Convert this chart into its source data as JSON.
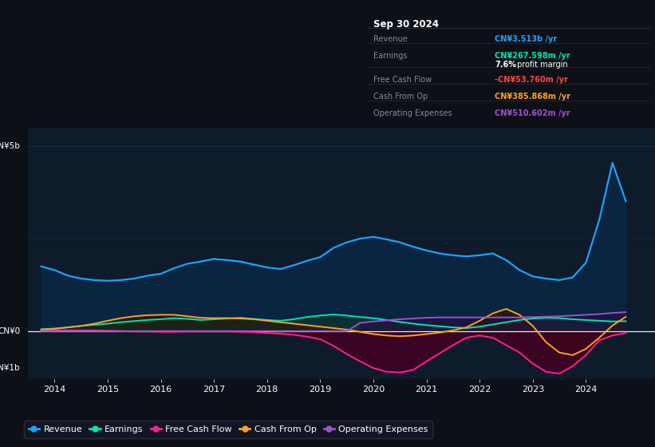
{
  "bg_color": "#0d1117",
  "chart_bg": "#0d1b2a",
  "ylim": [
    -1.3,
    5.5
  ],
  "xlim_start": 2013.5,
  "xlim_end": 2025.3,
  "colors": {
    "revenue": "#1aa3ff",
    "earnings": "#00e5b0",
    "free_cash_flow": "#ff2090",
    "cash_from_op": "#ffa020",
    "operating_expenses": "#a050d0"
  },
  "xticks": [
    2014,
    2015,
    2016,
    2017,
    2018,
    2019,
    2020,
    2021,
    2022,
    2023,
    2024
  ],
  "legend_labels": [
    "Revenue",
    "Earnings",
    "Free Cash Flow",
    "Cash From Op",
    "Operating Expenses"
  ],
  "info_title": "Sep 30 2024",
  "info_rows": [
    {
      "label": "Revenue",
      "value": "CN¥3.513b /yr",
      "vcolor": "#1aa3ff",
      "extra": null
    },
    {
      "label": "Earnings",
      "value": "CN¥267.598m /yr",
      "vcolor": "#00e5b0",
      "extra": "7.6% profit margin"
    },
    {
      "label": "Free Cash Flow",
      "value": "-CN¥53.760m /yr",
      "vcolor": "#ff4444",
      "extra": null
    },
    {
      "label": "Cash From Op",
      "value": "CN¥385.868m /yr",
      "vcolor": "#ffa020",
      "extra": null
    },
    {
      "label": "Operating Expenses",
      "value": "CN¥510.602m /yr",
      "vcolor": "#a050d0",
      "extra": null
    }
  ],
  "years": [
    2013.75,
    2014.0,
    2014.25,
    2014.5,
    2014.75,
    2015.0,
    2015.25,
    2015.5,
    2015.75,
    2016.0,
    2016.25,
    2016.5,
    2016.75,
    2017.0,
    2017.25,
    2017.5,
    2017.75,
    2018.0,
    2018.25,
    2018.5,
    2018.75,
    2019.0,
    2019.25,
    2019.5,
    2019.75,
    2020.0,
    2020.25,
    2020.5,
    2020.75,
    2021.0,
    2021.25,
    2021.5,
    2021.75,
    2022.0,
    2022.25,
    2022.5,
    2022.75,
    2023.0,
    2023.25,
    2023.5,
    2023.75,
    2024.0,
    2024.25,
    2024.5,
    2024.75
  ],
  "revenue": [
    1.75,
    1.65,
    1.5,
    1.42,
    1.38,
    1.36,
    1.38,
    1.42,
    1.5,
    1.55,
    1.7,
    1.82,
    1.88,
    1.95,
    1.92,
    1.88,
    1.8,
    1.72,
    1.68,
    1.78,
    1.9,
    2.0,
    2.25,
    2.4,
    2.5,
    2.55,
    2.48,
    2.4,
    2.28,
    2.18,
    2.1,
    2.05,
    2.02,
    2.05,
    2.1,
    1.92,
    1.65,
    1.48,
    1.42,
    1.38,
    1.45,
    1.85,
    3.0,
    4.55,
    3.513
  ],
  "earnings": [
    0.05,
    0.07,
    0.1,
    0.14,
    0.17,
    0.2,
    0.24,
    0.27,
    0.3,
    0.32,
    0.35,
    0.33,
    0.3,
    0.32,
    0.34,
    0.36,
    0.33,
    0.3,
    0.28,
    0.32,
    0.38,
    0.42,
    0.45,
    0.42,
    0.38,
    0.35,
    0.3,
    0.25,
    0.2,
    0.16,
    0.13,
    0.1,
    0.08,
    0.12,
    0.18,
    0.24,
    0.3,
    0.34,
    0.36,
    0.35,
    0.32,
    0.3,
    0.28,
    0.26,
    0.268
  ],
  "free_cash_flow": [
    0.02,
    0.02,
    0.02,
    0.02,
    0.02,
    0.01,
    0.0,
    -0.01,
    -0.01,
    -0.02,
    -0.02,
    -0.01,
    -0.01,
    -0.01,
    -0.01,
    -0.02,
    -0.03,
    -0.05,
    -0.07,
    -0.1,
    -0.15,
    -0.22,
    -0.4,
    -0.62,
    -0.82,
    -1.0,
    -1.1,
    -1.12,
    -1.05,
    -0.82,
    -0.6,
    -0.38,
    -0.18,
    -0.12,
    -0.18,
    -0.38,
    -0.58,
    -0.88,
    -1.1,
    -1.15,
    -0.95,
    -0.65,
    -0.25,
    -0.12,
    -0.054
  ],
  "cash_from_op": [
    0.04,
    0.06,
    0.1,
    0.14,
    0.2,
    0.28,
    0.35,
    0.4,
    0.43,
    0.44,
    0.44,
    0.4,
    0.36,
    0.35,
    0.35,
    0.34,
    0.32,
    0.28,
    0.24,
    0.2,
    0.16,
    0.12,
    0.08,
    0.04,
    -0.02,
    -0.08,
    -0.12,
    -0.14,
    -0.12,
    -0.08,
    -0.04,
    0.02,
    0.1,
    0.28,
    0.48,
    0.6,
    0.44,
    0.14,
    -0.3,
    -0.58,
    -0.65,
    -0.48,
    -0.18,
    0.15,
    0.386
  ],
  "operating_expenses": [
    0.0,
    0.0,
    0.0,
    0.0,
    0.0,
    0.0,
    0.0,
    0.0,
    0.0,
    0.0,
    0.0,
    0.0,
    0.0,
    0.0,
    0.0,
    0.0,
    0.0,
    0.0,
    0.0,
    0.0,
    0.0,
    0.0,
    0.0,
    0.0,
    0.22,
    0.26,
    0.29,
    0.32,
    0.34,
    0.36,
    0.37,
    0.37,
    0.37,
    0.37,
    0.37,
    0.37,
    0.37,
    0.38,
    0.39,
    0.4,
    0.42,
    0.44,
    0.46,
    0.49,
    0.511
  ]
}
